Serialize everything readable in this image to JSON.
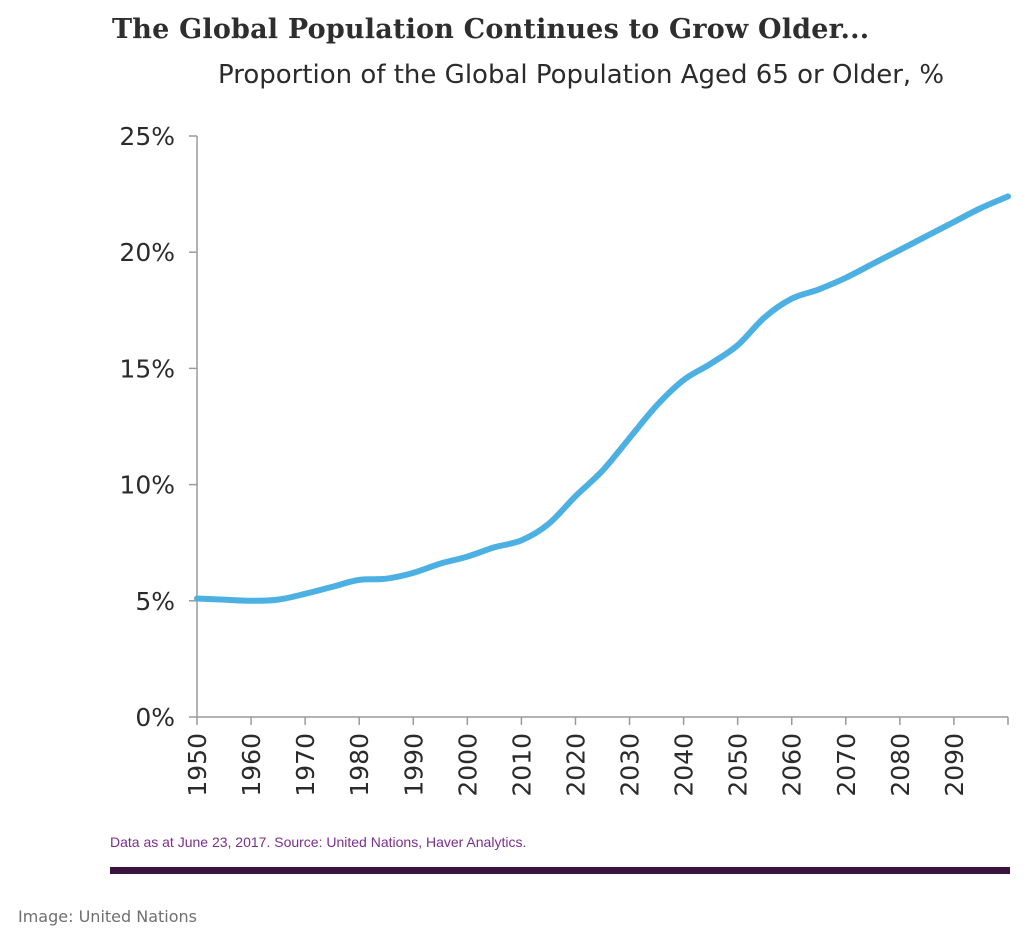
{
  "chart_data": {
    "type": "line",
    "title": "The Global Population Continues to Grow Older...",
    "subtitle": "Proportion of the Global Population Aged 65 or Older, %",
    "xlabel": "",
    "ylabel": "",
    "xlim": [
      1950,
      2100
    ],
    "ylim": [
      0,
      25
    ],
    "y_ticks": [
      "0%",
      "5%",
      "10%",
      "15%",
      "20%",
      "25%"
    ],
    "y_tick_values": [
      0,
      5,
      10,
      15,
      20,
      25
    ],
    "x_ticks": [
      "1950",
      "1960",
      "1970",
      "1980",
      "1990",
      "2000",
      "2010",
      "2020",
      "2030",
      "2040",
      "2050",
      "2060",
      "2070",
      "2080",
      "2090"
    ],
    "x_tick_values": [
      1950,
      1960,
      1970,
      1980,
      1990,
      2000,
      2010,
      2020,
      2030,
      2040,
      2050,
      2060,
      2070,
      2080,
      2090
    ],
    "grid": false,
    "series": [
      {
        "color": "#4db0e2",
        "x": [
          1950,
          1955,
          1960,
          1965,
          1970,
          1975,
          1980,
          1985,
          1990,
          1995,
          2000,
          2005,
          2010,
          2015,
          2020,
          2025,
          2030,
          2035,
          2040,
          2045,
          2050,
          2055,
          2060,
          2065,
          2070,
          2075,
          2080,
          2085,
          2090,
          2095,
          2100
        ],
        "y": [
          5.1,
          5.05,
          5.0,
          5.05,
          5.3,
          5.6,
          5.9,
          5.95,
          6.2,
          6.6,
          6.9,
          7.3,
          7.6,
          8.3,
          9.5,
          10.6,
          12.0,
          13.4,
          14.5,
          15.2,
          16.0,
          17.2,
          18.0,
          18.4,
          18.9,
          19.5,
          20.1,
          20.7,
          21.3,
          21.9,
          22.4
        ]
      }
    ]
  },
  "footer": {
    "source": "Data as at June 23, 2017. Source: United Nations, Haver Analytics.",
    "caption": "Image: United Nations"
  }
}
